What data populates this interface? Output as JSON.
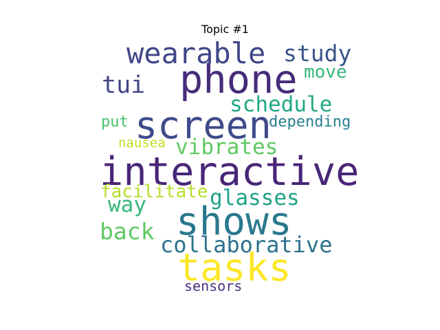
{
  "title": "Topic #1",
  "words": [
    {
      "text": "interactive",
      "color": "#482677"
    },
    {
      "text": "phone",
      "color": "#472c7a"
    },
    {
      "text": "screen",
      "color": "#3e4a89"
    },
    {
      "text": "shows",
      "color": "#2a788e"
    },
    {
      "text": "tasks",
      "color": "#fde725"
    },
    {
      "text": "wearable",
      "color": "#404688"
    },
    {
      "text": "study",
      "color": "#3b528b"
    },
    {
      "text": "collaborative",
      "color": "#2c728e"
    },
    {
      "text": "schedule",
      "color": "#22a884"
    },
    {
      "text": "vibrates",
      "color": "#5ec962"
    },
    {
      "text": "glasses",
      "color": "#1fa187"
    },
    {
      "text": "tui",
      "color": "#414487"
    },
    {
      "text": "back",
      "color": "#5ec962"
    },
    {
      "text": "way",
      "color": "#35b779"
    },
    {
      "text": "facilitate",
      "color": "#b5de2b"
    },
    {
      "text": "move",
      "color": "#35b779"
    },
    {
      "text": "depending",
      "color": "#277f8e"
    },
    {
      "text": "put",
      "color": "#4ac16d"
    },
    {
      "text": "nausea",
      "color": "#c2df23"
    },
    {
      "text": "sensors",
      "color": "#46327e"
    }
  ]
}
